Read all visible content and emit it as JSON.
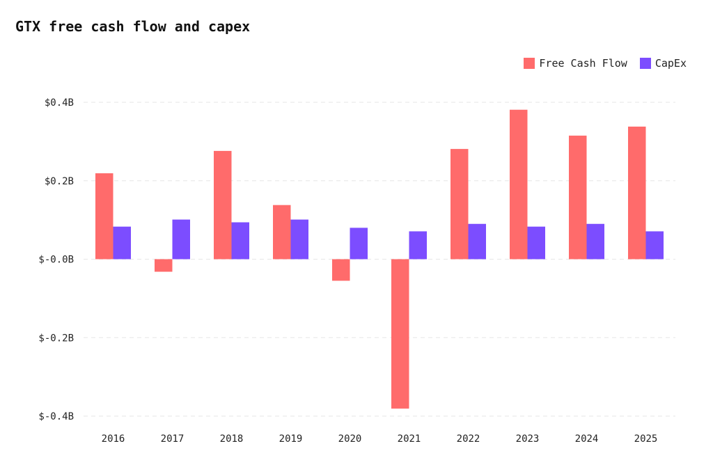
{
  "chart_data": {
    "type": "bar",
    "title": "GTX free cash flow and capex",
    "categories": [
      "2016",
      "2017",
      "2018",
      "2019",
      "2020",
      "2021",
      "2022",
      "2023",
      "2024",
      "2025"
    ],
    "series": [
      {
        "name": "Free Cash Flow",
        "color": "#ff6b6b",
        "values": [
          0.219,
          -0.032,
          0.276,
          0.138,
          -0.055,
          -0.381,
          0.281,
          0.381,
          0.315,
          0.338
        ]
      },
      {
        "name": "CapEx",
        "color": "#7c4dff",
        "values": [
          0.083,
          0.101,
          0.094,
          0.101,
          0.08,
          0.071,
          0.09,
          0.083,
          0.09,
          0.071
        ]
      }
    ],
    "yticks": [
      0.4,
      0.2,
      0,
      -0.2,
      -0.4
    ],
    "ytick_labels": [
      "$0.4B",
      "$0.2B",
      "$-0.0B",
      "$-0.2B",
      "$-0.4B"
    ],
    "ylim": [
      -0.4,
      0.4
    ],
    "unit": "B USD",
    "grid": true,
    "legend": "top-right",
    "xlabel": "",
    "ylabel": ""
  }
}
